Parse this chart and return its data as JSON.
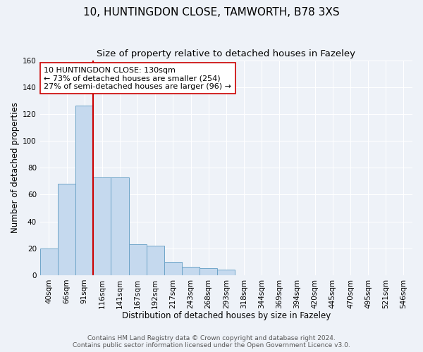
{
  "title": "10, HUNTINGDON CLOSE, TAMWORTH, B78 3XS",
  "subtitle": "Size of property relative to detached houses in Fazeley",
  "xlabel": "Distribution of detached houses by size in Fazeley",
  "ylabel": "Number of detached properties",
  "bar_labels": [
    "40sqm",
    "66sqm",
    "91sqm",
    "116sqm",
    "141sqm",
    "167sqm",
    "192sqm",
    "217sqm",
    "243sqm",
    "268sqm",
    "293sqm",
    "318sqm",
    "344sqm",
    "369sqm",
    "394sqm",
    "420sqm",
    "445sqm",
    "470sqm",
    "495sqm",
    "521sqm",
    "546sqm"
  ],
  "bar_values": [
    20,
    68,
    126,
    73,
    73,
    23,
    22,
    10,
    6,
    5,
    4,
    0,
    0,
    0,
    0,
    0,
    0,
    0,
    0,
    0,
    0
  ],
  "bar_color": "#c5d9ee",
  "bar_edge_color": "#6ea4c8",
  "vline_index": 2,
  "vline_color": "#cc0000",
  "ylim": [
    0,
    160
  ],
  "yticks": [
    0,
    20,
    40,
    60,
    80,
    100,
    120,
    140,
    160
  ],
  "annotation_text": "10 HUNTINGDON CLOSE: 130sqm\n← 73% of detached houses are smaller (254)\n27% of semi-detached houses are larger (96) →",
  "annotation_box_color": "#ffffff",
  "annotation_box_edge": "#cc0000",
  "footer_line1": "Contains HM Land Registry data © Crown copyright and database right 2024.",
  "footer_line2": "Contains public sector information licensed under the Open Government Licence v3.0.",
  "background_color": "#eef2f8",
  "grid_color": "#ffffff",
  "title_fontsize": 11,
  "subtitle_fontsize": 9.5,
  "axis_label_fontsize": 8.5,
  "tick_fontsize": 7.5,
  "annotation_fontsize": 8,
  "footer_fontsize": 6.5
}
